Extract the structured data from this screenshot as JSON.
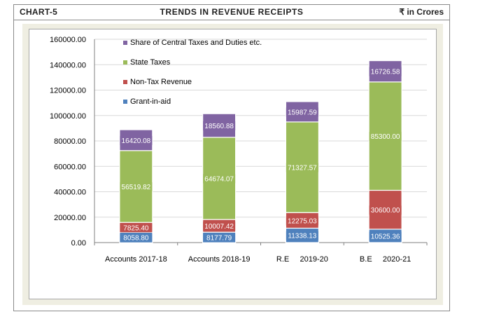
{
  "header": {
    "label": "CHART-5",
    "title": "TRENDS IN REVENUE RECEIPTS",
    "unit": "₹ in Crores"
  },
  "chart_data": {
    "type": "bar",
    "stacked": true,
    "categories": [
      "Accounts 2017-18",
      "Accounts 2018-19",
      "R.E     2019-20",
      "B.E     2020-21"
    ],
    "series": [
      {
        "name": "Grant-in-aid",
        "color": "#4f81bd",
        "values": [
          8058.8,
          8177.79,
          11338.13,
          10525.36
        ],
        "labels": [
          "8058.80",
          "8177.79",
          "11338.13",
          "10525.36"
        ]
      },
      {
        "name": "Non-Tax Revenue",
        "color": "#c0504d",
        "values": [
          7825.4,
          10007.42,
          12275.03,
          30600.0
        ],
        "labels": [
          "7825.40",
          "10007.42",
          "12275.03",
          "30600.00"
        ]
      },
      {
        "name": "State Taxes",
        "color": "#9bbb59",
        "values": [
          56519.82,
          64674.07,
          71327.57,
          85300.0
        ],
        "labels": [
          "56519.82",
          "64674.07",
          "71327.57",
          "85300.00"
        ]
      },
      {
        "name": "Share of Central Taxes and Duties etc.",
        "color": "#8064a2",
        "values": [
          16420.08,
          18560.88,
          15987.59,
          16726.58
        ],
        "labels": [
          "16420.08",
          "18560.88",
          "15987.59",
          "16726.58"
        ]
      }
    ],
    "legend_order": [
      3,
      2,
      1,
      0
    ],
    "legend_position": "top-left",
    "ylim": [
      0,
      160000
    ],
    "yticks": [
      "0.00",
      "20000.00",
      "40000.00",
      "60000.00",
      "80000.00",
      "100000.00",
      "120000.00",
      "140000.00",
      "160000.00"
    ],
    "grid": true,
    "xlabel": "",
    "ylabel": ""
  }
}
